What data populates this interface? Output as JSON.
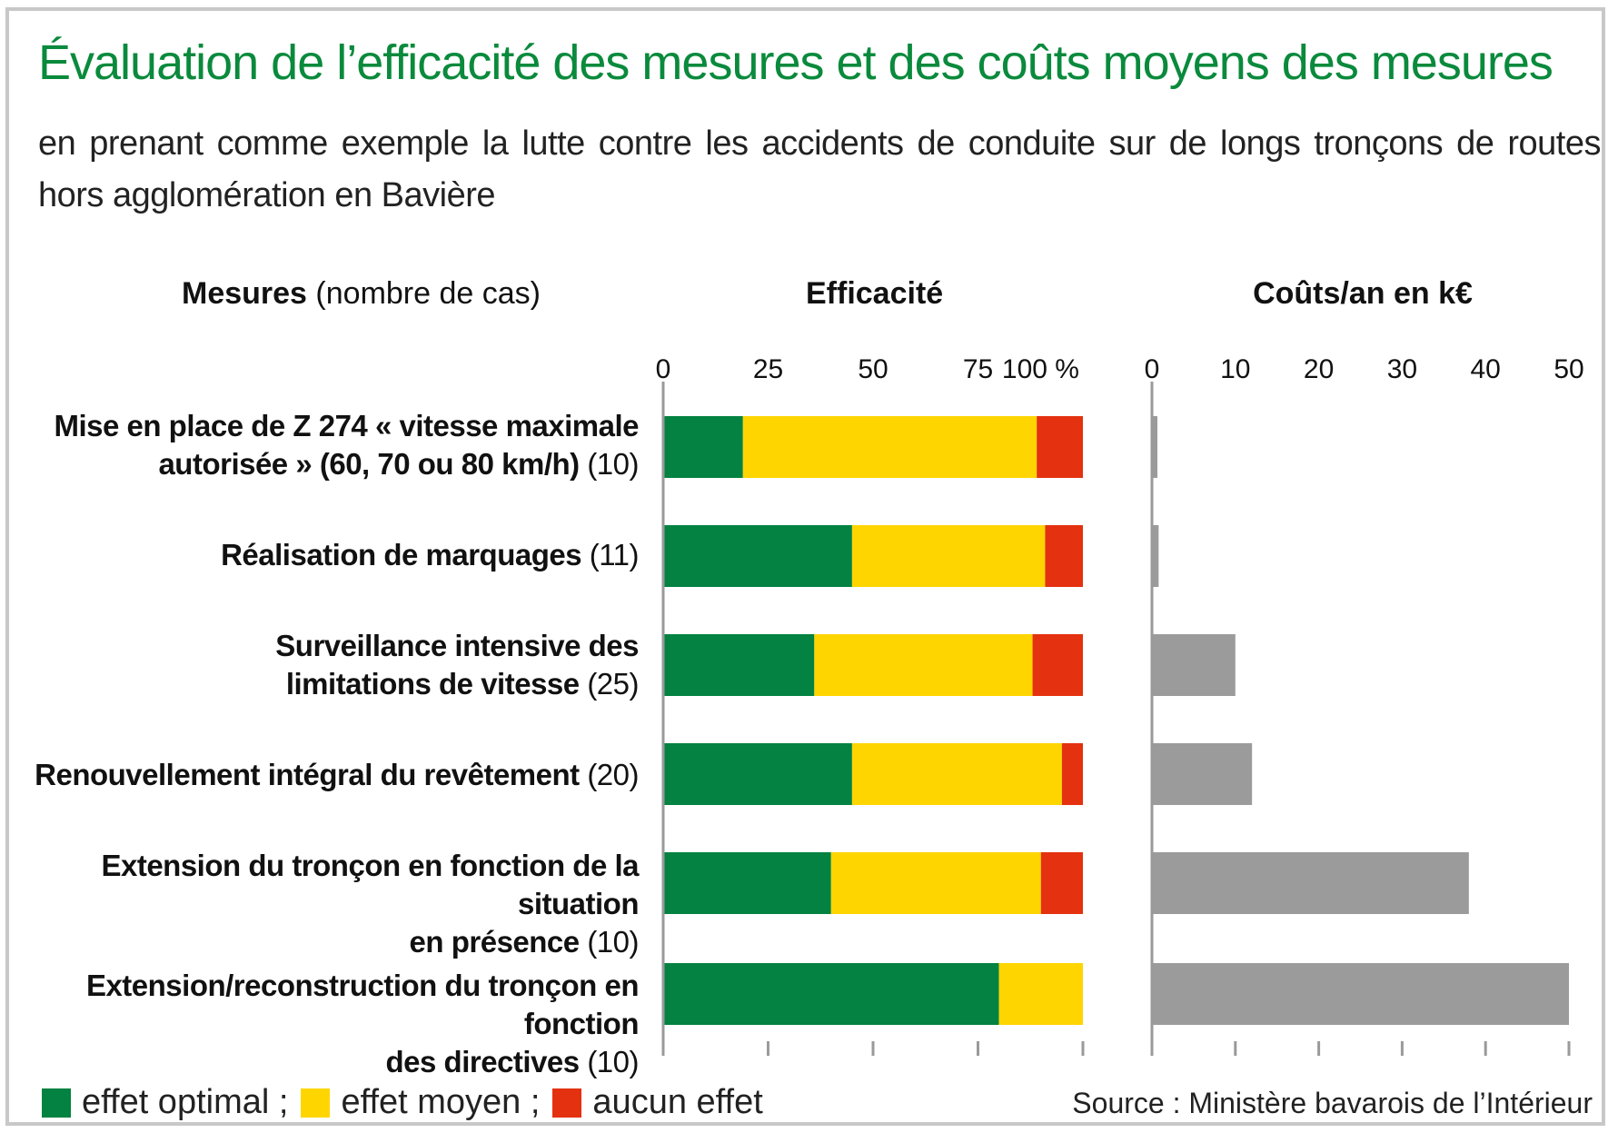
{
  "title": "Évaluation de l’efficacité des mesures et des coûts moyens des mesures",
  "subtitle": "en prenant comme exemple la lutte contre les accidents de conduite sur de longs tronçons de routes hors agglomération en Bavière",
  "headers": {
    "measures_bold": "Mesures",
    "measures_normal": "(nombre de cas)",
    "effectiveness": "Efficacité",
    "costs": "Coûts/an en k€"
  },
  "rows": [
    {
      "line1": "Mise en place de Z 274 « vitesse maximale",
      "line2": "autorisée »  (60, 70 ou 80 km/h)",
      "count": "(10)"
    },
    {
      "line1": "",
      "line2": "Réalisation de marquages",
      "count": "(11)"
    },
    {
      "line1": "Surveillance intensive des",
      "line2": "limitations de vitesse",
      "count": "(25)"
    },
    {
      "line1": "",
      "line2": "Renouvellement intégral du revêtement",
      "count": "(20)"
    },
    {
      "line1": "Extension du tronçon en fonction de la situation",
      "line2": "en présence",
      "count": "(10)"
    },
    {
      "line1": "Extension/reconstruction du tronçon en fonction",
      "line2": "des directives",
      "count": "(10)"
    }
  ],
  "legend": [
    {
      "label": "effet optimal ;",
      "color": "#038241"
    },
    {
      "label": "effet moyen ;",
      "color": "#ffd500"
    },
    {
      "label": "aucun effet",
      "color": "#e4310f"
    }
  ],
  "source": "Source : Ministère bavarois de l’Intérieur",
  "chart_data": [
    {
      "type": "bar",
      "stacked": true,
      "orientation": "horizontal",
      "title": "Efficacité",
      "xlim": [
        0,
        100
      ],
      "ticks": [
        0,
        25,
        50,
        75,
        100
      ],
      "tick_labels": [
        "0",
        "25",
        "50",
        "75",
        "100 %"
      ],
      "categories": [
        "Mise en place de Z 274 « vitesse maximale autorisée » (60, 70 ou 80 km/h) (10)",
        "Réalisation de marquages (11)",
        "Surveillance intensive des limitations de vitesse (25)",
        "Renouvellement intégral du revêtement (20)",
        "Extension du tronçon en fonction de la situation en présence (10)",
        "Extension/reconstruction du tronçon en fonction des directives (10)"
      ],
      "series": [
        {
          "name": "effet optimal",
          "color": "#038241",
          "values": [
            19,
            45,
            36,
            45,
            40,
            80
          ]
        },
        {
          "name": "effet moyen",
          "color": "#ffd500",
          "values": [
            70,
            46,
            52,
            50,
            50,
            20
          ]
        },
        {
          "name": "aucun effet",
          "color": "#e4310f",
          "values": [
            11,
            9,
            12,
            5,
            10,
            0
          ]
        }
      ]
    },
    {
      "type": "bar",
      "orientation": "horizontal",
      "title": "Coûts/an en k€",
      "xlim": [
        0,
        50
      ],
      "ticks": [
        0,
        10,
        20,
        30,
        40,
        50
      ],
      "tick_labels": [
        "0",
        "10",
        "20",
        "30",
        "40",
        "50"
      ],
      "color": "#9b9b9b",
      "values": [
        0.3,
        0.8,
        10,
        12,
        38,
        50
      ]
    }
  ]
}
